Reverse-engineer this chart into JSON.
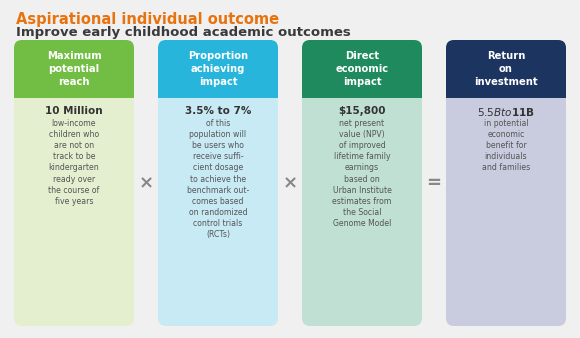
{
  "title_line1": "Aspirational individual outcome",
  "title_line2": "Improve early childhood academic outcomes",
  "title_color": "#E8720C",
  "subtitle_color": "#3A3A3A",
  "outer_bg": "#F0F0F0",
  "outer_border": "#D0D0D0",
  "boxes": [
    {
      "header": "Maximum\npotential\nreach",
      "header_bg": "#72BE44",
      "header_text_color": "#FFFFFF",
      "body_bg": "#E4EFD0",
      "value": "10 Million",
      "value_color": "#333333",
      "description": "low-income\nchildren who\nare not on\ntrack to be\nkindergarten\nready over\nthe course of\nfive years",
      "desc_color": "#555555"
    },
    {
      "header": "Proportion\nachieving\nimpact",
      "header_bg": "#27B5DC",
      "header_text_color": "#FFFFFF",
      "body_bg": "#C8EAF5",
      "value": "3.5% to 7%",
      "value_color": "#333333",
      "description": "of this\npopulation will\nbe users who\nreceive suffi-\ncient dosage\nto achieve the\nbenchmark out-\ncomes based\non randomized\ncontrol trials\n(RCTs)",
      "desc_color": "#555555"
    },
    {
      "header": "Direct\neconomic\nimpact",
      "header_bg": "#1F8A5E",
      "header_text_color": "#FFFFFF",
      "body_bg": "#C0E0D4",
      "value": "$15,800",
      "value_color": "#333333",
      "description": "net present\nvalue (NPV)\nof improved\nlifetime family\nearnings\nbased on\nUrban Institute\nestimates from\nthe Social\nGenome Model",
      "desc_color": "#555555"
    },
    {
      "header": "Return\non\ninvestment",
      "header_bg": "#1C3460",
      "header_text_color": "#FFFFFF",
      "body_bg": "#C8CCDE",
      "value": "$5.5B to $11B",
      "value_color": "#333333",
      "description": "in potential\neconomic\nbenefit for\nindividuals\nand families",
      "desc_color": "#555555"
    }
  ],
  "operators": [
    "×",
    "×",
    "="
  ],
  "operator_color": "#888888",
  "fig_width": 5.8,
  "fig_height": 3.38,
  "dpi": 100
}
